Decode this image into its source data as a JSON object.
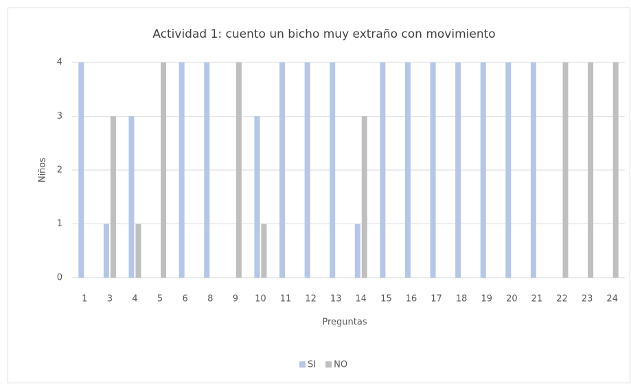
{
  "chart_data": {
    "type": "bar",
    "title": "Actividad 1: cuento un bicho muy extraño con movimiento",
    "x_label": "Preguntas",
    "y_label": "Niños",
    "categories": [
      "1",
      "3",
      "4",
      "5",
      "6",
      "8",
      "9",
      "10",
      "11",
      "12",
      "13",
      "14",
      "15",
      "16",
      "17",
      "18",
      "19",
      "20",
      "21",
      "22",
      "23",
      "24"
    ],
    "series": [
      {
        "name": "SI",
        "color": "#b4c7e7",
        "values": [
          4,
          1,
          3,
          0,
          4,
          4,
          0,
          3,
          4,
          4,
          4,
          1,
          4,
          4,
          4,
          4,
          4,
          4,
          4,
          0,
          0,
          0
        ]
      },
      {
        "name": "NO",
        "color": "#bfbfbf",
        "values": [
          0,
          3,
          1,
          4,
          0,
          0,
          4,
          1,
          0,
          0,
          0,
          3,
          0,
          0,
          0,
          0,
          0,
          0,
          0,
          4,
          4,
          4
        ]
      }
    ],
    "ylim": [
      0,
      4
    ],
    "yticks": [
      0,
      1,
      2,
      3,
      4
    ],
    "grid": true,
    "legend": "bottom"
  }
}
